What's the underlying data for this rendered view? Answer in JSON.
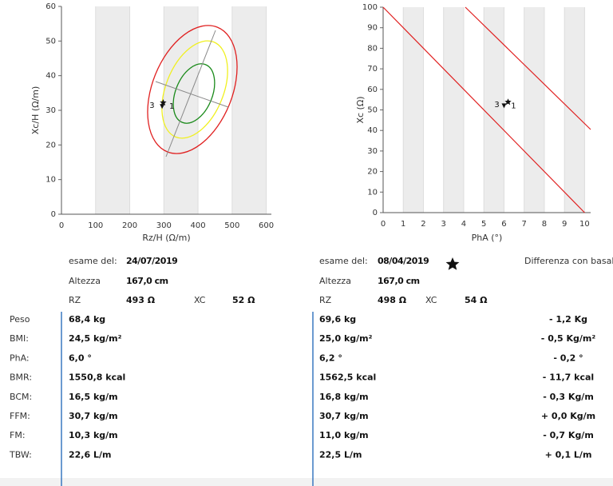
{
  "chart_data": [
    {
      "type": "scatter",
      "xlabel": "Rz/H (Ω/m)",
      "ylabel": "Xc/H (Ω/m)",
      "xlim": [
        0,
        615
      ],
      "ylim": [
        0,
        60
      ],
      "xticks": [
        0,
        100,
        200,
        300,
        400,
        500,
        600
      ],
      "yticks": [
        0,
        10,
        20,
        30,
        40,
        50,
        60
      ],
      "shaded_bands": true,
      "series": [
        {
          "name": "1",
          "x": [
            295
          ],
          "values": [
            31.1
          ]
        },
        {
          "name": "3",
          "x": [
            298
          ],
          "values": [
            32.3
          ]
        }
      ]
    },
    {
      "type": "scatter",
      "xlabel": "PhA (°)",
      "ylabel": "Xc (Ω)",
      "xlim": [
        0,
        10.3
      ],
      "ylim": [
        0,
        100
      ],
      "xticks": [
        0,
        1,
        2,
        3,
        4,
        5,
        6,
        7,
        8,
        9,
        10
      ],
      "yticks": [
        0,
        10,
        20,
        30,
        40,
        50,
        60,
        70,
        80,
        90,
        100
      ],
      "shaded_bands": true,
      "series": [
        {
          "name": "1",
          "x": [
            6.0
          ],
          "values": [
            52
          ]
        },
        {
          "name": "3",
          "x": [
            6.2
          ],
          "values": [
            54
          ]
        }
      ]
    }
  ],
  "exams": [
    {
      "date_label": "esame del:",
      "date": "24/07/2019",
      "height_label": "Altezza",
      "height": "167,0 cm",
      "rz_label": "RZ",
      "rz": "493 Ω",
      "xc_label": "XC",
      "xc": "52 Ω"
    },
    {
      "date_label": "esame del:",
      "date": "08/04/2019",
      "height_label": "Altezza",
      "height": "167,0 cm",
      "rz_label": "RZ",
      "rz": "498 Ω",
      "xc_label": "XC",
      "xc": "54 Ω"
    }
  ],
  "difference_title": "Differenza con basale",
  "rows": [
    [
      "Peso",
      "68,4 kg",
      "69,6 kg",
      "- 1,2 Kg"
    ],
    [
      "BMI:",
      "24,5 kg/m²",
      "25,0 kg/m²",
      "- 0,5 Kg/m²"
    ],
    [
      "PhA:",
      "6,0 °",
      "6,2 °",
      "- 0,2 °"
    ],
    [
      "BMR:",
      "1550,8 kcal",
      "1562,5 kcal",
      "- 11,7 kcal"
    ],
    [
      "BCM:",
      "16,5 kg/m",
      "16,8 kg/m",
      "- 0,3 Kg/m"
    ],
    [
      "FFM:",
      "30,7 kg/m",
      "30,7 kg/m",
      "+ 0,0 Kg/m"
    ],
    [
      "FM:",
      "10,3 kg/m",
      "11,0 kg/m",
      "- 0,7 Kg/m"
    ],
    [
      "TBW:",
      "22,6 L/m",
      "22,5 L/m",
      "+ 0,1 L/m"
    ]
  ]
}
